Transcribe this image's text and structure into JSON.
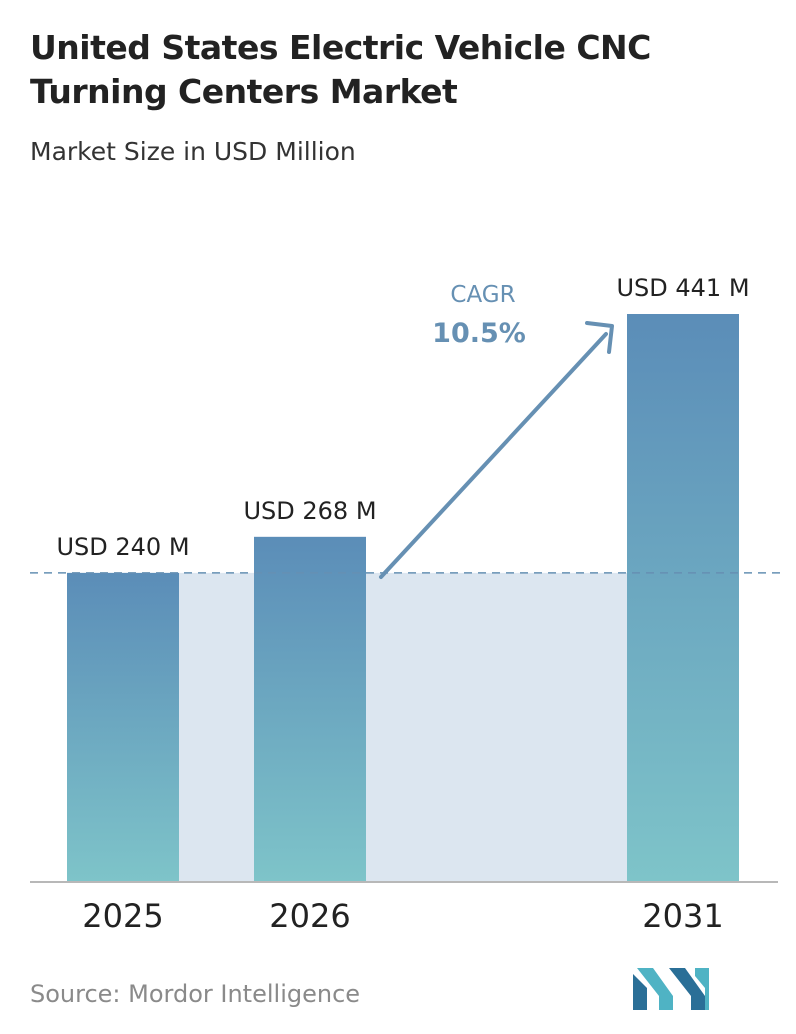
{
  "title_line1": "United States Electric Vehicle CNC",
  "title_line2": "Turning Centers Market",
  "subtitle": "Market Size in USD Million",
  "source": "Source: Mordor Intelligence",
  "logo_icon": "mordor-intelligence-logo-icon",
  "colors": {
    "bar_top": "#5b8db8",
    "bar_bottom": "#7ec4c9",
    "shade": "#dce6f0",
    "accent": "#6690b3",
    "text": "#222222"
  },
  "chart_data": {
    "type": "bar",
    "categories": [
      "2025",
      "2026",
      "2031"
    ],
    "values": [
      240,
      268,
      441
    ],
    "value_labels": [
      "USD 240 M",
      "USD 268 M",
      "USD 441 M"
    ],
    "reference_line_value": 240,
    "grid": false,
    "cagr": {
      "label": "CAGR",
      "value": "10.5%"
    }
  }
}
